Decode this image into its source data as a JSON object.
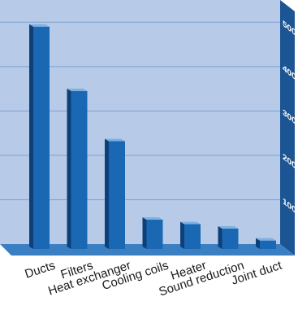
{
  "chart_data": {
    "type": "bar",
    "title": "",
    "xlabel": "",
    "ylabel": "",
    "categories": [
      "Ducts",
      "Filters",
      "Heat exchanger",
      "Cooling coils",
      "Heater",
      "Sound reduction",
      "Joint duct"
    ],
    "values": [
      490,
      345,
      232,
      55,
      45,
      35,
      8
    ],
    "ylim": [
      0,
      550
    ],
    "yticks": [
      100,
      200,
      300,
      400,
      500
    ],
    "grid": true,
    "legend": "none",
    "colors": {
      "background_wall": "#b7cbe8",
      "axis_wall": "#1c5593",
      "floor": "#3b7fc3",
      "bar_front": "#1a68b3",
      "bar_side": "#0d3f78",
      "bar_top": "#7fb0e0",
      "gridline": "#7e9fd0"
    }
  }
}
